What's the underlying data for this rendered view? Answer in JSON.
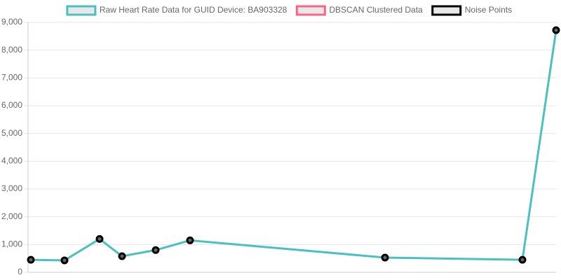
{
  "chart_data": {
    "type": "line",
    "x": [
      4,
      52,
      102,
      134,
      182,
      231,
      509,
      705,
      753
    ],
    "xlim": [
      0,
      753
    ],
    "series": [
      {
        "name": "Raw Heart Rate Data for GUID Device: BA903328",
        "color": "#4bc0c0",
        "values": [
          450,
          430,
          1200,
          580,
          800,
          1150,
          530,
          450,
          8720
        ]
      },
      {
        "name": "DBSCAN Clustered Data",
        "color": "#ff6384",
        "values": [
          null,
          null,
          null,
          null,
          null,
          null,
          null,
          null,
          null
        ]
      },
      {
        "name": "Noise Points",
        "color": "#000000",
        "values": [
          450,
          430,
          1200,
          580,
          800,
          1150,
          530,
          450,
          8720
        ]
      }
    ],
    "ylim": [
      0,
      9000
    ],
    "yticks": [
      0,
      {
        "value": 1000,
        "label": "1,000"
      },
      {
        "value": 2000,
        "label": "2,000"
      },
      {
        "value": 3000,
        "label": "3,000"
      },
      {
        "value": 4000,
        "label": "4,000"
      },
      {
        "value": 5000,
        "label": "5,000"
      },
      {
        "value": 6000,
        "label": "6,000"
      },
      {
        "value": 7000,
        "label": "7,000"
      },
      {
        "value": 8000,
        "label": "8,000"
      },
      {
        "value": 9000,
        "label": "9,000"
      }
    ],
    "grid": true,
    "legend": "top"
  }
}
